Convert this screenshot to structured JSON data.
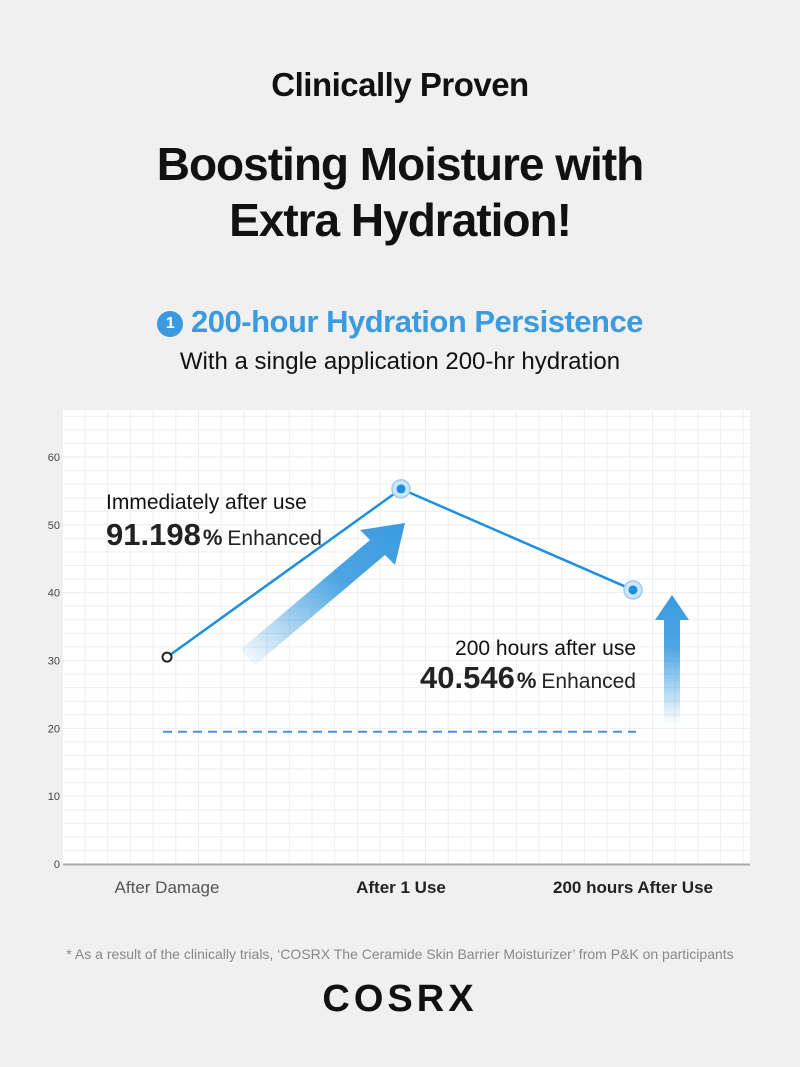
{
  "header": {
    "kicker": "Clinically Proven",
    "title_line1": "Boosting Moisture with",
    "title_line2": "Extra Hydration!",
    "section_number": "1",
    "section_title": "200-hour Hydration Persistence",
    "subtitle": "With a single application 200-hr hydration"
  },
  "colors": {
    "accent": "#3a9be0",
    "line": "#1d8fe0",
    "background": "#f0f0f0",
    "panel": "#ffffff"
  },
  "chart_data": {
    "type": "line",
    "categories": [
      "After Damage",
      "After 1 Use",
      "200 hours After Use"
    ],
    "values": [
      30.5,
      55.3,
      40.4
    ],
    "baseline": 19.5,
    "ylim": [
      0,
      60
    ],
    "yticks": [
      "0",
      "10",
      "20",
      "30",
      "40",
      "50",
      "60"
    ],
    "grid": true,
    "annotations": [
      {
        "label": "Immediately after use",
        "value": "91.198",
        "unit": "%",
        "suffix": "Enhanced"
      },
      {
        "label": "200 hours after use",
        "value": "40.546",
        "unit": "%",
        "suffix": "Enhanced"
      }
    ]
  },
  "footer": {
    "footnote": "* As a result of the clinically trials, ‘COSRX The Ceramide Skin Barrier Moisturizer’ from P&K on participants",
    "logo": "COSRX"
  }
}
